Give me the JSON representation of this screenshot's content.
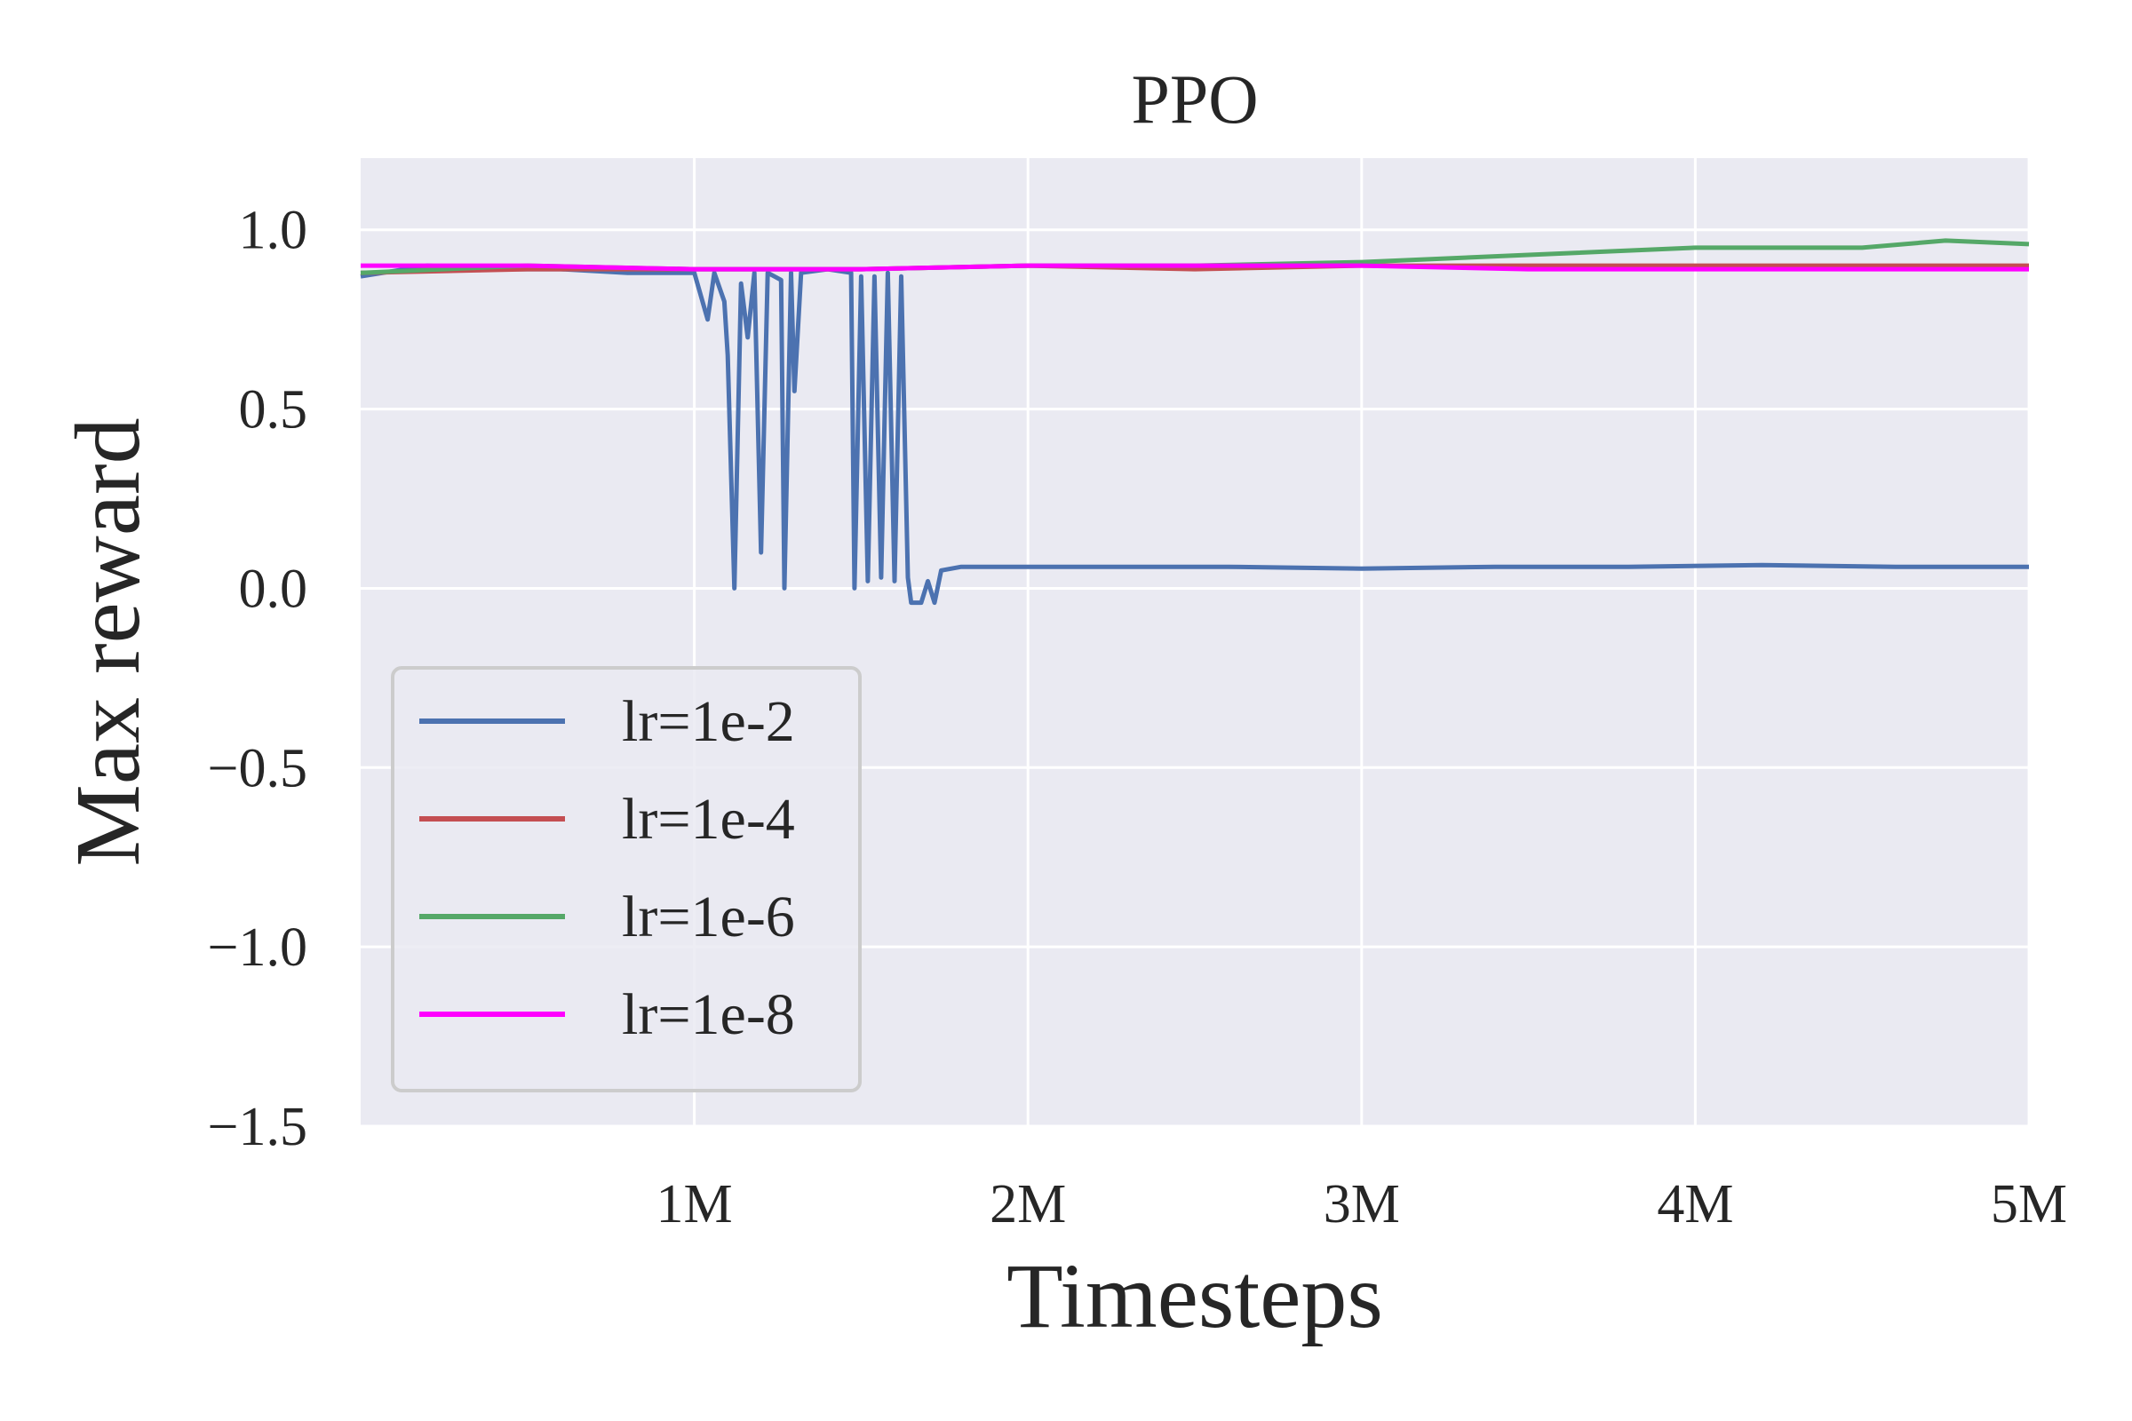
{
  "chart_data": {
    "type": "line",
    "title": "PPO",
    "xlabel": "Timesteps",
    "ylabel": "Max reward",
    "xlim": [
      0,
      5000000
    ],
    "ylim": [
      -1.5,
      1.2
    ],
    "xticks": [
      {
        "value": 1000000,
        "label": "1M"
      },
      {
        "value": 2000000,
        "label": "2M"
      },
      {
        "value": 3000000,
        "label": "3M"
      },
      {
        "value": 4000000,
        "label": "4M"
      },
      {
        "value": 5000000,
        "label": "5M"
      }
    ],
    "yticks": [
      {
        "value": 1.0,
        "label": "1.0"
      },
      {
        "value": 0.5,
        "label": "0.5"
      },
      {
        "value": 0.0,
        "label": "0.0"
      },
      {
        "value": -0.5,
        "label": "−0.5"
      },
      {
        "value": -1.0,
        "label": "−1.0"
      },
      {
        "value": -1.5,
        "label": "−1.5"
      }
    ],
    "grid": true,
    "background": "#eaeaf2",
    "legend_position": "lower-left",
    "series": [
      {
        "name": "lr=1e-2",
        "color": "#4c72b0",
        "points": [
          [
            0,
            0.87
          ],
          [
            200000,
            0.9
          ],
          [
            400000,
            0.89
          ],
          [
            600000,
            0.89
          ],
          [
            800000,
            0.88
          ],
          [
            1000000,
            0.88
          ],
          [
            1040000,
            0.75
          ],
          [
            1060000,
            0.88
          ],
          [
            1090000,
            0.8
          ],
          [
            1100000,
            0.65
          ],
          [
            1120000,
            0.0
          ],
          [
            1140000,
            0.85
          ],
          [
            1160000,
            0.7
          ],
          [
            1180000,
            0.88
          ],
          [
            1200000,
            0.1
          ],
          [
            1220000,
            0.88
          ],
          [
            1240000,
            0.87
          ],
          [
            1260000,
            0.86
          ],
          [
            1270000,
            0.0
          ],
          [
            1290000,
            0.88
          ],
          [
            1300000,
            0.55
          ],
          [
            1320000,
            0.88
          ],
          [
            1400000,
            0.89
          ],
          [
            1470000,
            0.88
          ],
          [
            1480000,
            0.0
          ],
          [
            1500000,
            0.87
          ],
          [
            1520000,
            0.02
          ],
          [
            1540000,
            0.87
          ],
          [
            1560000,
            0.03
          ],
          [
            1580000,
            0.88
          ],
          [
            1600000,
            0.02
          ],
          [
            1620000,
            0.87
          ],
          [
            1640000,
            0.03
          ],
          [
            1650000,
            -0.04
          ],
          [
            1680000,
            -0.04
          ],
          [
            1700000,
            0.02
          ],
          [
            1720000,
            -0.04
          ],
          [
            1740000,
            0.05
          ],
          [
            1800000,
            0.06
          ],
          [
            2200000,
            0.06
          ],
          [
            2600000,
            0.06
          ],
          [
            3000000,
            0.055
          ],
          [
            3400000,
            0.06
          ],
          [
            3800000,
            0.06
          ],
          [
            4200000,
            0.065
          ],
          [
            4600000,
            0.06
          ],
          [
            5000000,
            0.06
          ]
        ]
      },
      {
        "name": "lr=1e-4",
        "color": "#c44e52",
        "points": [
          [
            0,
            0.88
          ],
          [
            500000,
            0.89
          ],
          [
            1000000,
            0.89
          ],
          [
            1500000,
            0.89
          ],
          [
            2000000,
            0.9
          ],
          [
            2500000,
            0.89
          ],
          [
            3000000,
            0.9
          ],
          [
            3500000,
            0.9
          ],
          [
            4000000,
            0.9
          ],
          [
            4500000,
            0.9
          ],
          [
            5000000,
            0.9
          ]
        ]
      },
      {
        "name": "lr=1e-6",
        "color": "#55a868",
        "points": [
          [
            0,
            0.88
          ],
          [
            500000,
            0.9
          ],
          [
            1000000,
            0.89
          ],
          [
            1500000,
            0.89
          ],
          [
            2000000,
            0.9
          ],
          [
            2500000,
            0.9
          ],
          [
            3000000,
            0.91
          ],
          [
            3500000,
            0.93
          ],
          [
            4000000,
            0.95
          ],
          [
            4500000,
            0.95
          ],
          [
            4750000,
            0.97
          ],
          [
            5000000,
            0.96
          ]
        ]
      },
      {
        "name": "lr=1e-8",
        "color": "#ff00ff",
        "points": [
          [
            0,
            0.9
          ],
          [
            500000,
            0.9
          ],
          [
            1000000,
            0.89
          ],
          [
            1500000,
            0.89
          ],
          [
            2000000,
            0.9
          ],
          [
            2500000,
            0.9
          ],
          [
            3000000,
            0.9
          ],
          [
            3500000,
            0.89
          ],
          [
            4000000,
            0.89
          ],
          [
            4500000,
            0.89
          ],
          [
            5000000,
            0.89
          ]
        ]
      }
    ]
  }
}
